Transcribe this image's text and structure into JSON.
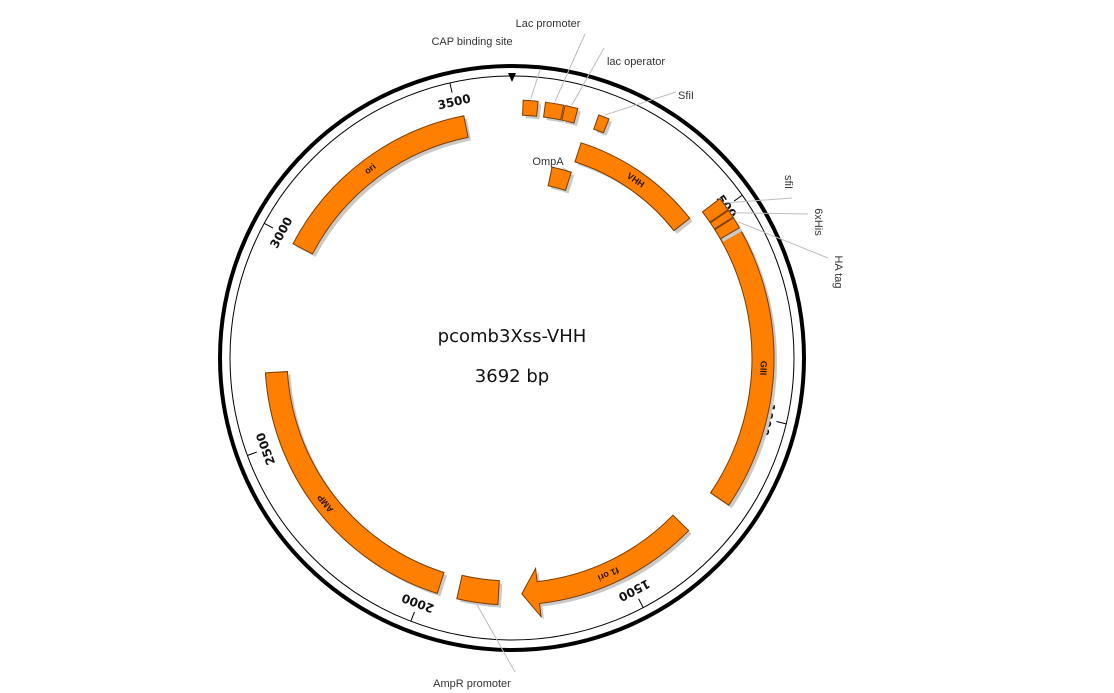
{
  "plasmid": {
    "name": "pcomb3Xss-VHH",
    "length_label": "3692 bp",
    "length": 3692
  },
  "colors": {
    "feature": "#ff8000",
    "feature_outline": "#7a3b00",
    "backbone": "#000000"
  },
  "ticks": [
    {
      "bp": 500,
      "label": "500"
    },
    {
      "bp": 1000,
      "label": "1000"
    },
    {
      "bp": 1500,
      "label": "1500"
    },
    {
      "bp": 2000,
      "label": "2000"
    },
    {
      "bp": 2500,
      "label": "2500"
    },
    {
      "bp": 3000,
      "label": "3000"
    },
    {
      "bp": 3500,
      "label": "3500"
    }
  ],
  "features": [
    {
      "id": "vhh",
      "label": "VHH",
      "start": 121,
      "end": 470,
      "track": "inner",
      "label_mode": "inside",
      "arrow": false
    },
    {
      "id": "giii",
      "label": "GIII",
      "start": 558,
      "end": 1212,
      "track": "inner",
      "label_mode": "inside",
      "arrow": false
    },
    {
      "id": "f1ori",
      "label": "f1 ori",
      "start": 1316,
      "end": 1760,
      "track": "inner",
      "label_mode": "inside",
      "arrow": true
    },
    {
      "id": "amp",
      "label": "AMP",
      "start": 1965,
      "end": 2672,
      "track": "inner",
      "label_mode": "inside",
      "arrow": false
    },
    {
      "id": "ori",
      "label": "ori",
      "start": 2990,
      "end": 3515,
      "track": "inner",
      "label_mode": "inside",
      "arrow": false
    },
    {
      "id": "cap",
      "label": "CAP binding site",
      "start": 3656,
      "end": 3690,
      "track": "outer",
      "label_mode": "outside",
      "arrow": false
    },
    {
      "id": "lacpro",
      "label": "Lac promoter",
      "start": 15,
      "end": 57,
      "track": "outer",
      "label_mode": "outside",
      "arrow": false
    },
    {
      "id": "lacop",
      "label": "lac operator",
      "start": 60,
      "end": 90,
      "track": "outer",
      "label_mode": "outside",
      "arrow": false
    },
    {
      "id": "sfi1",
      "label": "SfiI",
      "start": 140,
      "end": 165,
      "track": "outer",
      "label_mode": "outside",
      "arrow": false
    },
    {
      "id": "ompa",
      "label": "OmpA",
      "start": 60,
      "end": 120,
      "track": "mid",
      "label_mode": "outside",
      "arrow": false
    },
    {
      "id": "sfi2",
      "label": "sfiI",
      "start": 477,
      "end": 508,
      "track": "inner",
      "label_mode": "outside",
      "arrow": false
    },
    {
      "id": "his",
      "label": "6xHis",
      "start": 510,
      "end": 528,
      "track": "inner",
      "label_mode": "outside",
      "arrow": false
    },
    {
      "id": "ha",
      "label": "HA tag",
      "start": 530,
      "end": 556,
      "track": "inner",
      "label_mode": "outside",
      "arrow": false
    },
    {
      "id": "amprpro",
      "label": "AmpR promoter",
      "start": 1818,
      "end": 1917,
      "track": "inner",
      "label_mode": "outside",
      "arrow": false
    }
  ]
}
